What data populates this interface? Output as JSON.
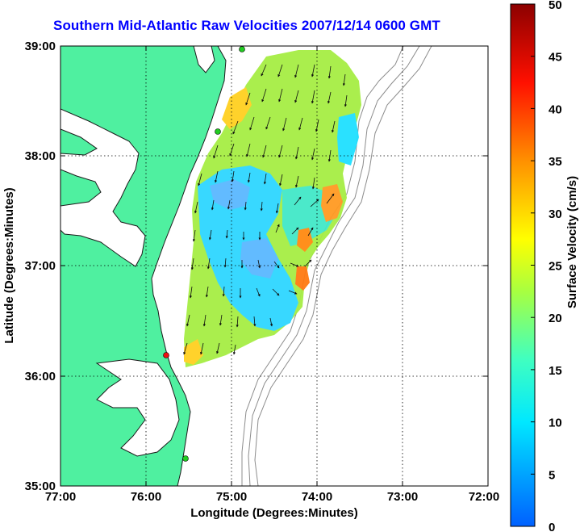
{
  "title": "Southern Mid-Atlantic Raw Velocities 2007/12/14 0600 GMT",
  "xlabel": "Longitude (Degrees:Minutes)",
  "ylabel": "Latitude (Degrees:Minutes)",
  "colorbar_label": "Surface Velocity (cm/s)",
  "x_ticks": [
    "77:00",
    "76:00",
    "75:00",
    "74:00",
    "73:00",
    "72:00"
  ],
  "y_ticks": [
    "39:00",
    "38:00",
    "37:00",
    "36:00",
    "35:00"
  ],
  "colorbar_ticks": [
    "0",
    "5",
    "10",
    "15",
    "20",
    "25",
    "30",
    "35",
    "40",
    "45",
    "50"
  ],
  "colors": {
    "land": "#4ff0a0",
    "coastline": "#1a1a1a",
    "bathymetry": "#8c8c8c",
    "grid": "#000000",
    "title": "#0000ff",
    "station_green": "#22cc22",
    "station_red": "#ee1111"
  }
}
